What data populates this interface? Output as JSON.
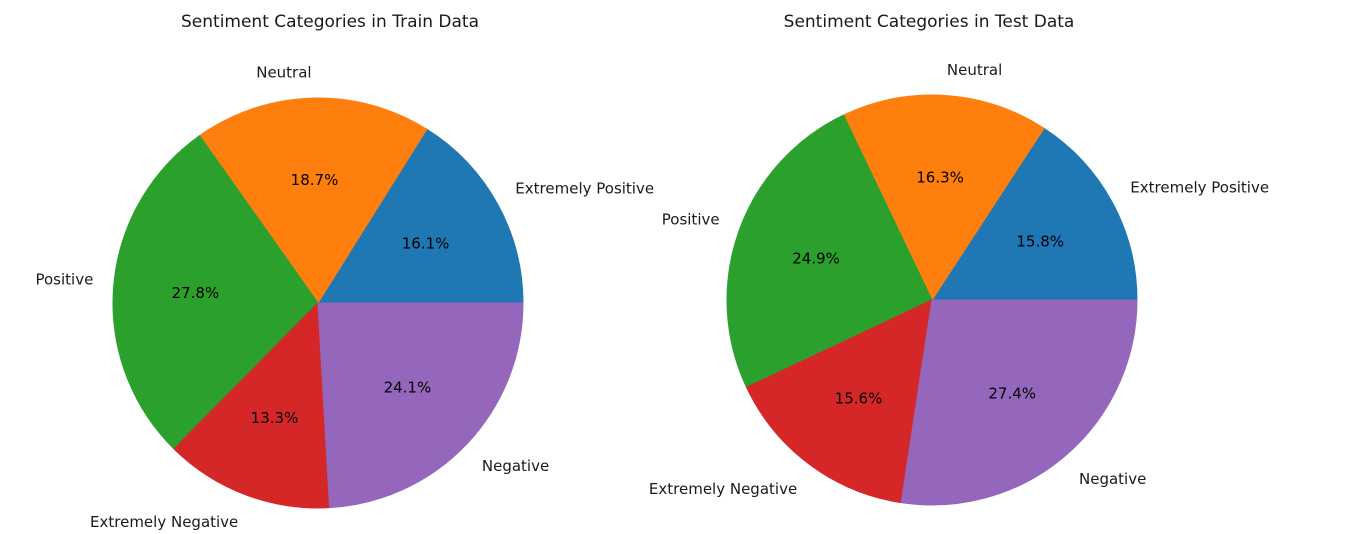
{
  "figure": {
    "background_color": "#ffffff",
    "text_color": "#1a1a1a"
  },
  "chart_data": [
    {
      "type": "pie",
      "title": "Sentiment Categories in Train Data",
      "labels": [
        "Extremely Positive",
        "Neutral",
        "Positive",
        "Extremely Negative",
        "Negative"
      ],
      "values": [
        16.1,
        18.7,
        27.8,
        13.3,
        24.1
      ],
      "percent_labels": [
        "16.1%",
        "18.7%",
        "27.8%",
        "13.3%",
        "24.1%"
      ],
      "colors": [
        "#1f77b4",
        "#ff7f0e",
        "#2ca02c",
        "#d62728",
        "#9467bd"
      ],
      "start_angle_deg": 0,
      "direction": "counterclockwise",
      "legend": "none"
    },
    {
      "type": "pie",
      "title": "Sentiment Categories in Test Data",
      "labels": [
        "Extremely Positive",
        "Neutral",
        "Positive",
        "Extremely Negative",
        "Negative"
      ],
      "values": [
        15.8,
        16.3,
        24.9,
        15.6,
        27.4
      ],
      "percent_labels": [
        "15.8%",
        "16.3%",
        "24.9%",
        "15.6%",
        "27.4%"
      ],
      "colors": [
        "#1f77b4",
        "#ff7f0e",
        "#2ca02c",
        "#d62728",
        "#9467bd"
      ],
      "start_angle_deg": 0,
      "direction": "counterclockwise",
      "legend": "none"
    }
  ]
}
